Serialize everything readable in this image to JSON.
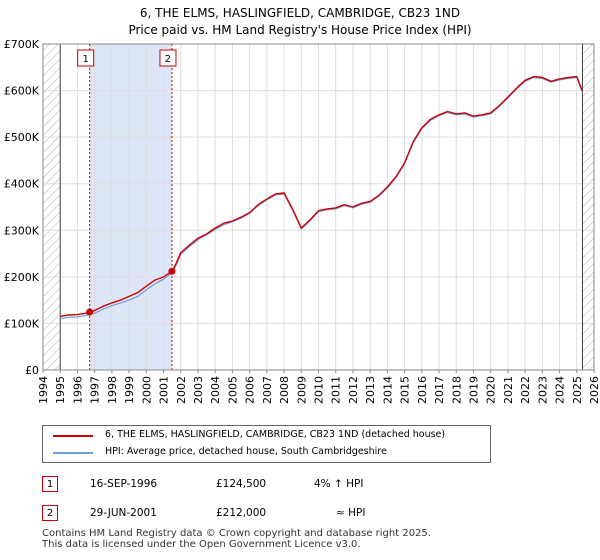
{
  "title_line1": "6, THE ELMS, HASLINGFIELD, CAMBRIDGE, CB23 1ND",
  "title_line2": "Price paid vs. HM Land Registry's House Price Index (HPI)",
  "colors": {
    "property": "#cc0000",
    "hpi": "#6f9fd8",
    "shade": "#dde6f7",
    "grid": "#dddddd",
    "marker_line": "#cc0000",
    "hatch": "#b0b0b0"
  },
  "chart_data": {
    "type": "line",
    "xlim": [
      1994,
      2026
    ],
    "ylim": [
      0,
      700000
    ],
    "yticks": [
      0,
      100000,
      200000,
      300000,
      400000,
      500000,
      600000,
      700000
    ],
    "ytick_labels": [
      "£0",
      "£100K",
      "£200K",
      "£300K",
      "£400K",
      "£500K",
      "£600K",
      "£700K"
    ],
    "xticks": [
      1994,
      1995,
      1996,
      1997,
      1998,
      1999,
      2000,
      2001,
      2002,
      2003,
      2004,
      2005,
      2006,
      2007,
      2008,
      2009,
      2010,
      2011,
      2012,
      2013,
      2014,
      2015,
      2016,
      2017,
      2018,
      2019,
      2020,
      2021,
      2022,
      2023,
      2024,
      2025,
      2026
    ],
    "xtick_labels": [
      "1994",
      "1995",
      "1996",
      "1997",
      "1998",
      "1999",
      "2000",
      "2001",
      "2002",
      "2003",
      "2004",
      "2005",
      "2006",
      "2007",
      "2008",
      "2009",
      "2010",
      "2011",
      "2012",
      "2013",
      "2014",
      "2015",
      "2016",
      "2017",
      "2018",
      "2019",
      "2020",
      "2021",
      "2022",
      "2023",
      "2024",
      "2025",
      "2026"
    ],
    "shaded_range": [
      1996.71,
      2001.49
    ],
    "data_start": 1995.0,
    "data_end": 2025.33,
    "series": [
      {
        "name": "6, THE ELMS, HASLINGFIELD, CAMBRIDGE, CB23 1ND (detached house)",
        "x": [
          1995.0,
          1995.5,
          1996.0,
          1996.5,
          1996.71,
          1997.0,
          1997.5,
          1998.0,
          1998.5,
          1999.0,
          1999.5,
          2000.0,
          2000.5,
          2001.0,
          2001.49,
          2001.75,
          2002.0,
          2002.5,
          2003.0,
          2003.5,
          2004.0,
          2004.5,
          2005.0,
          2005.5,
          2006.0,
          2006.5,
          2007.0,
          2007.5,
          2008.0,
          2008.5,
          2009.0,
          2009.5,
          2010.0,
          2010.5,
          2011.0,
          2011.5,
          2012.0,
          2012.5,
          2013.0,
          2013.5,
          2014.0,
          2014.5,
          2015.0,
          2015.5,
          2016.0,
          2016.5,
          2017.0,
          2017.5,
          2018.0,
          2018.5,
          2019.0,
          2019.5,
          2020.0,
          2020.5,
          2021.0,
          2021.5,
          2022.0,
          2022.5,
          2023.0,
          2023.5,
          2024.0,
          2024.5,
          2025.0,
          2025.33
        ],
        "values": [
          115000,
          118000,
          119000,
          122000,
          124500,
          128000,
          137000,
          144000,
          150000,
          158000,
          166000,
          180000,
          193000,
          200000,
          212000,
          230000,
          252000,
          268000,
          283000,
          292000,
          305000,
          315000,
          320000,
          328000,
          338000,
          355000,
          367000,
          378000,
          380000,
          345000,
          305000,
          322000,
          342000,
          346000,
          348000,
          355000,
          350000,
          358000,
          362000,
          375000,
          393000,
          415000,
          445000,
          490000,
          520000,
          538000,
          548000,
          555000,
          550000,
          552000,
          545000,
          548000,
          552000,
          568000,
          586000,
          605000,
          622000,
          630000,
          628000,
          620000,
          625000,
          628000,
          630000,
          598000
        ]
      },
      {
        "name": "HPI: Average price, detached house, South Cambridgeshire",
        "x": [
          1995.0,
          1995.5,
          1996.0,
          1996.5,
          1996.71,
          1997.0,
          1997.5,
          1998.0,
          1998.5,
          1999.0,
          1999.5,
          2000.0,
          2000.5,
          2001.0,
          2001.49,
          2001.75,
          2002.0,
          2002.5,
          2003.0,
          2003.5,
          2004.0,
          2004.5,
          2005.0,
          2005.5,
          2006.0,
          2006.5,
          2007.0,
          2007.5,
          2008.0,
          2008.5,
          2009.0,
          2009.5,
          2010.0,
          2010.5,
          2011.0,
          2011.5,
          2012.0,
          2012.5,
          2013.0,
          2013.5,
          2014.0,
          2014.5,
          2015.0,
          2015.5,
          2016.0,
          2016.5,
          2017.0,
          2017.5,
          2018.0,
          2018.5,
          2019.0,
          2019.5,
          2020.0,
          2020.5,
          2021.0,
          2021.5,
          2022.0,
          2022.5,
          2023.0,
          2023.5,
          2024.0,
          2024.5,
          2025.0,
          2025.33
        ],
        "values": [
          110000,
          113000,
          114000,
          117000,
          119000,
          122000,
          131000,
          138000,
          144000,
          150000,
          158000,
          172000,
          185000,
          195000,
          208000,
          226000,
          248000,
          265000,
          280000,
          290000,
          302000,
          312000,
          318000,
          326000,
          336000,
          353000,
          365000,
          376000,
          378000,
          343000,
          303000,
          320000,
          340000,
          344000,
          346000,
          353000,
          348000,
          356000,
          360000,
          373000,
          391000,
          413000,
          443000,
          488000,
          518000,
          536000,
          546000,
          553000,
          548000,
          550000,
          543000,
          546000,
          550000,
          566000,
          584000,
          603000,
          620000,
          628000,
          626000,
          618000,
          623000,
          626000,
          628000,
          596000
        ]
      }
    ],
    "sales": [
      {
        "label": "1",
        "x": 1996.71,
        "value": 124500,
        "date": "16-SEP-1996",
        "price": "£124,500",
        "hpi_relation": "4% ↑ HPI"
      },
      {
        "label": "2",
        "x": 2001.49,
        "value": 212000,
        "date": "29-JUN-2001",
        "price": "£212,000",
        "hpi_relation": "≈ HPI"
      }
    ]
  },
  "footer_line1": "Contains HM Land Registry data © Crown copyright and database right 2025.",
  "footer_line2": "This data is licensed under the Open Government Licence v3.0."
}
